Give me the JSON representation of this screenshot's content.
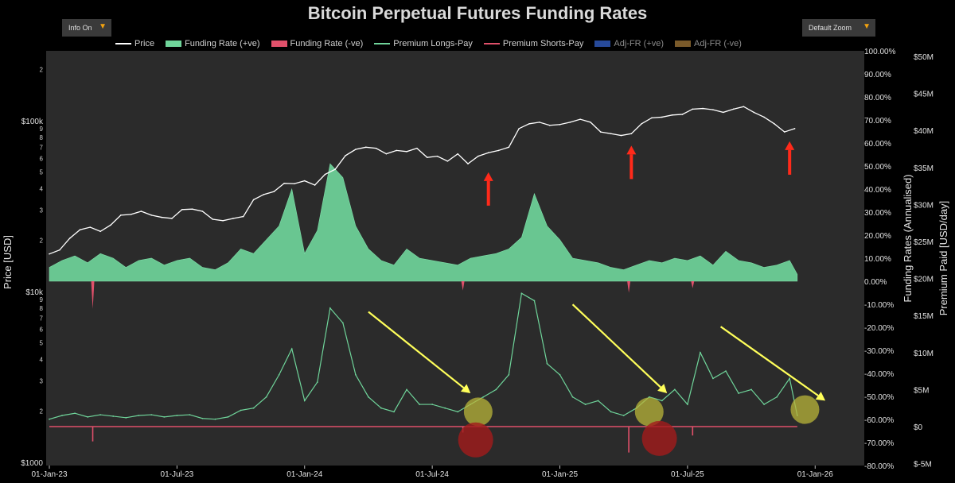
{
  "header": {
    "title": "Bitcoin Perpetual Futures Funding Rates",
    "info_button": "Info On",
    "zoom_button": "Default Zoom",
    "caret": "▼"
  },
  "legend": [
    {
      "name": "Price",
      "color": "#ffffff",
      "kind": "line"
    },
    {
      "name": "Funding Rate (+ve)",
      "color": "#6fd49a",
      "kind": "block"
    },
    {
      "name": "Funding Rate (-ve)",
      "color": "#e0506a",
      "kind": "block"
    },
    {
      "name": "Premium Longs-Pay",
      "color": "#6fd49a",
      "kind": "line"
    },
    {
      "name": "Premium Shorts-Pay",
      "color": "#e0506a",
      "kind": "line"
    },
    {
      "name": "Adj-FR (+ve)",
      "color": "#274a9a",
      "kind": "block"
    },
    {
      "name": "Adj-FR (-ve)",
      "color": "#7a5a2a",
      "kind": "block"
    }
  ],
  "chart_data": {
    "type": "line",
    "title": "Bitcoin Perpetual Futures Funding Rates",
    "x_ticks": [
      "01-Jan-23",
      "01-Jul-23",
      "01-Jan-24",
      "01-Jul-24",
      "01-Jan-25",
      "01-Jul-25",
      "01-Jan-26"
    ],
    "price_axis": {
      "label": "Price [USD]",
      "scale": "log",
      "major_ticks": [
        {
          "v": 1000,
          "label": "$1000"
        },
        {
          "v": 10000,
          "label": "$10k"
        },
        {
          "v": 100000,
          "label": "$100k"
        }
      ],
      "minor_labels": [
        "2",
        "3",
        "4",
        "5",
        "6",
        "7",
        "8",
        "9"
      ]
    },
    "funding_axis": {
      "label": "Funding Rates (Annualised)",
      "range": [
        -80,
        100
      ],
      "ticks": [
        "100.00%",
        "90.00%",
        "80.00%",
        "70.00%",
        "60.00%",
        "50.00%",
        "40.00%",
        "30.00%",
        "20.00%",
        "10.00%",
        "0.00%",
        "-10.00%",
        "-20.00%",
        "-30.00%",
        "-40.00%",
        "-50.00%",
        "-60.00%",
        "-70.00%",
        "-80.00%"
      ]
    },
    "premium_axis": {
      "label": "Premium Paid [USD/day]",
      "range": [
        -5,
        50
      ],
      "unit": "M",
      "ticks": [
        "$50M",
        "$45M",
        "$40M",
        "$35M",
        "$30M",
        "$25M",
        "$20M",
        "$15M",
        "$10M",
        "$5M",
        "$0",
        "$-5M"
      ]
    },
    "price_series": {
      "name": "Price",
      "x": [
        2023.0,
        2023.04,
        2023.08,
        2023.12,
        2023.16,
        2023.2,
        2023.24,
        2023.28,
        2023.32,
        2023.36,
        2023.4,
        2023.44,
        2023.48,
        2023.52,
        2023.56,
        2023.6,
        2023.64,
        2023.68,
        2023.72,
        2023.76,
        2023.8,
        2023.84,
        2023.88,
        2023.92,
        2023.96,
        2024.0,
        2024.04,
        2024.08,
        2024.12,
        2024.16,
        2024.2,
        2024.24,
        2024.28,
        2024.32,
        2024.36,
        2024.4,
        2024.44,
        2024.48,
        2024.52,
        2024.56,
        2024.6,
        2024.64,
        2024.68,
        2024.72,
        2024.76,
        2024.8,
        2024.84,
        2024.88,
        2024.92,
        2024.96,
        2025.0,
        2025.04,
        2025.08,
        2025.12,
        2025.16,
        2025.2,
        2025.24,
        2025.28,
        2025.32,
        2025.36,
        2025.4,
        2025.44,
        2025.48,
        2025.52,
        2025.56,
        2025.6,
        2025.64,
        2025.68,
        2025.72,
        2025.76,
        2025.8,
        2025.84,
        2025.88,
        2025.92
      ],
      "y": [
        16600,
        17500,
        20500,
        23000,
        23800,
        22500,
        24500,
        28000,
        28300,
        29500,
        28000,
        27200,
        26800,
        30200,
        30400,
        29500,
        26500,
        26000,
        26800,
        27500,
        34500,
        37000,
        38500,
        43000,
        42800,
        44500,
        42000,
        48500,
        52000,
        62500,
        68000,
        70000,
        69000,
        64000,
        67000,
        66000,
        69000,
        61000,
        62000,
        58000,
        64000,
        56000,
        62000,
        65000,
        67000,
        70000,
        90000,
        96000,
        98000,
        94000,
        95000,
        98000,
        102000,
        98000,
        86000,
        84000,
        82000,
        84000,
        96000,
        104000,
        105000,
        108000,
        109000,
        117000,
        118000,
        116000,
        112000,
        117000,
        121000,
        112000,
        105000,
        96000,
        86000,
        90000
      ]
    },
    "funding_series": {
      "name": "Funding Rate (+ve)",
      "x": [
        2023.0,
        2023.05,
        2023.1,
        2023.15,
        2023.2,
        2023.25,
        2023.3,
        2023.35,
        2023.4,
        2023.45,
        2023.5,
        2023.55,
        2023.6,
        2023.65,
        2023.7,
        2023.75,
        2023.8,
        2023.85,
        2023.9,
        2023.95,
        2024.0,
        2024.05,
        2024.1,
        2024.15,
        2024.2,
        2024.25,
        2024.3,
        2024.35,
        2024.4,
        2024.45,
        2024.5,
        2024.55,
        2024.6,
        2024.65,
        2024.7,
        2024.75,
        2024.8,
        2024.85,
        2024.9,
        2024.95,
        2025.0,
        2025.05,
        2025.1,
        2025.15,
        2025.2,
        2025.25,
        2025.3,
        2025.35,
        2025.4,
        2025.45,
        2025.5,
        2025.55,
        2025.6,
        2025.65,
        2025.7,
        2025.75,
        2025.8,
        2025.85,
        2025.9,
        2025.93
      ],
      "y": [
        6,
        9,
        11,
        8,
        12,
        10,
        6,
        9,
        10,
        7,
        9,
        10,
        6,
        5,
        8,
        14,
        12,
        18,
        24,
        40,
        12,
        22,
        51,
        45,
        24,
        14,
        9,
        7,
        14,
        10,
        9,
        8,
        7,
        10,
        11,
        12,
        14,
        19,
        38,
        24,
        18,
        10,
        9,
        8,
        6,
        5,
        7,
        9,
        8,
        10,
        9,
        11,
        7,
        13,
        9,
        8,
        6,
        7,
        9,
        3
      ]
    },
    "funding_negative_spikes": [
      {
        "x": 2023.17,
        "y": -12
      },
      {
        "x": 2024.62,
        "y": -4
      },
      {
        "x": 2025.27,
        "y": -5
      },
      {
        "x": 2025.52,
        "y": -3
      }
    ],
    "premium_series": {
      "name": "Premium Longs-Pay",
      "x": [
        2023.0,
        2023.05,
        2023.1,
        2023.15,
        2023.2,
        2023.25,
        2023.3,
        2023.35,
        2023.4,
        2023.45,
        2023.5,
        2023.55,
        2023.6,
        2023.65,
        2023.7,
        2023.75,
        2023.8,
        2023.85,
        2023.9,
        2023.95,
        2024.0,
        2024.05,
        2024.1,
        2024.15,
        2024.2,
        2024.25,
        2024.3,
        2024.35,
        2024.4,
        2024.45,
        2024.5,
        2024.55,
        2024.6,
        2024.65,
        2024.7,
        2024.75,
        2024.8,
        2024.85,
        2024.9,
        2024.95,
        2025.0,
        2025.05,
        2025.1,
        2025.15,
        2025.2,
        2025.25,
        2025.3,
        2025.35,
        2025.4,
        2025.45,
        2025.5,
        2025.55,
        2025.6,
        2025.65,
        2025.7,
        2025.75,
        2025.8,
        2025.85,
        2025.9,
        2025.93
      ],
      "y": [
        1.0,
        1.5,
        1.8,
        1.3,
        1.6,
        1.4,
        1.2,
        1.5,
        1.6,
        1.3,
        1.5,
        1.6,
        1.1,
        1.0,
        1.3,
        2.2,
        2.5,
        4.0,
        7.0,
        10.5,
        3.5,
        6.0,
        16.0,
        14.0,
        7.0,
        4.0,
        2.5,
        2.0,
        5.0,
        3.0,
        3.0,
        2.5,
        2.0,
        3.0,
        4.0,
        5.0,
        7.0,
        18.0,
        17.0,
        8.5,
        7.0,
        4.0,
        3.0,
        3.5,
        2.0,
        1.5,
        2.5,
        4.0,
        3.5,
        5.0,
        3.0,
        10.0,
        6.5,
        7.5,
        4.5,
        5.0,
        3.0,
        4.0,
        6.5,
        1.5
      ]
    },
    "premium_shorts_baseline": 0,
    "premium_negative_spikes": [
      {
        "x": 2023.17,
        "y": -2.0
      },
      {
        "x": 2024.62,
        "y": -0.8
      },
      {
        "x": 2025.27,
        "y": -3.5
      },
      {
        "x": 2025.52,
        "y": -1.2
      }
    ],
    "annotations": {
      "red_arrows": [
        {
          "x": 2024.72,
          "price": 58000
        },
        {
          "x": 2025.28,
          "price": 83000
        },
        {
          "x": 2025.9,
          "price": 88000
        }
      ],
      "yellow_arrows": [
        {
          "x0": 2024.25,
          "y0": 15.5,
          "x1": 2024.65,
          "y1": 4.5
        },
        {
          "x0": 2025.05,
          "y0": 16.5,
          "x1": 2025.42,
          "y1": 4.5
        },
        {
          "x0": 2025.63,
          "y0": 13.5,
          "x1": 2026.04,
          "y1": 3.5
        }
      ],
      "yellow_circles": [
        {
          "x": 2024.68,
          "y": 2.0
        },
        {
          "x": 2025.35,
          "y": 2.0
        },
        {
          "x": 2025.96,
          "y": 2.3
        }
      ],
      "red_circles": [
        {
          "x": 2024.67,
          "y": -1.8
        },
        {
          "x": 2025.39,
          "y": -1.6
        }
      ]
    },
    "x_range": [
      2023.0,
      2026.18
    ],
    "grid": false,
    "legend_position": "top"
  }
}
